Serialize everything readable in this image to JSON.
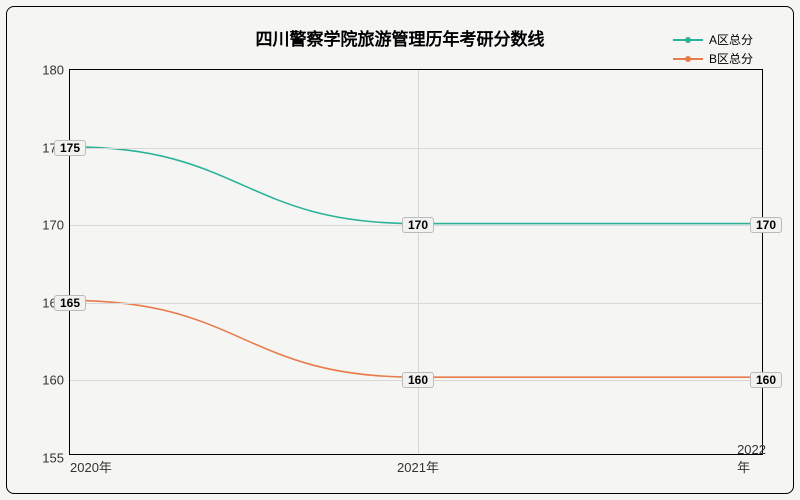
{
  "chart": {
    "type": "line",
    "title": "四川警察学院旅游管理历年考研分数线",
    "title_fontsize": 17,
    "background_color": "#f5f5f3",
    "border_color": "#000000",
    "grid_color": "#d8d8d8",
    "label_fontsize": 12,
    "tick_fontsize": 13,
    "x": {
      "categories": [
        "2020年",
        "2021年",
        "2022年"
      ]
    },
    "y": {
      "min": 155,
      "max": 180,
      "ticks": [
        155,
        160,
        165,
        170,
        175,
        180
      ]
    },
    "series": [
      {
        "name": "A区总分",
        "color": "#2bb39a",
        "values": [
          175,
          170,
          170
        ],
        "labels": [
          "175",
          "170",
          "170"
        ]
      },
      {
        "name": "B区总分",
        "color": "#e87b4a",
        "values": [
          165,
          160,
          160
        ],
        "labels": [
          "165",
          "160",
          "160"
        ]
      }
    ]
  }
}
